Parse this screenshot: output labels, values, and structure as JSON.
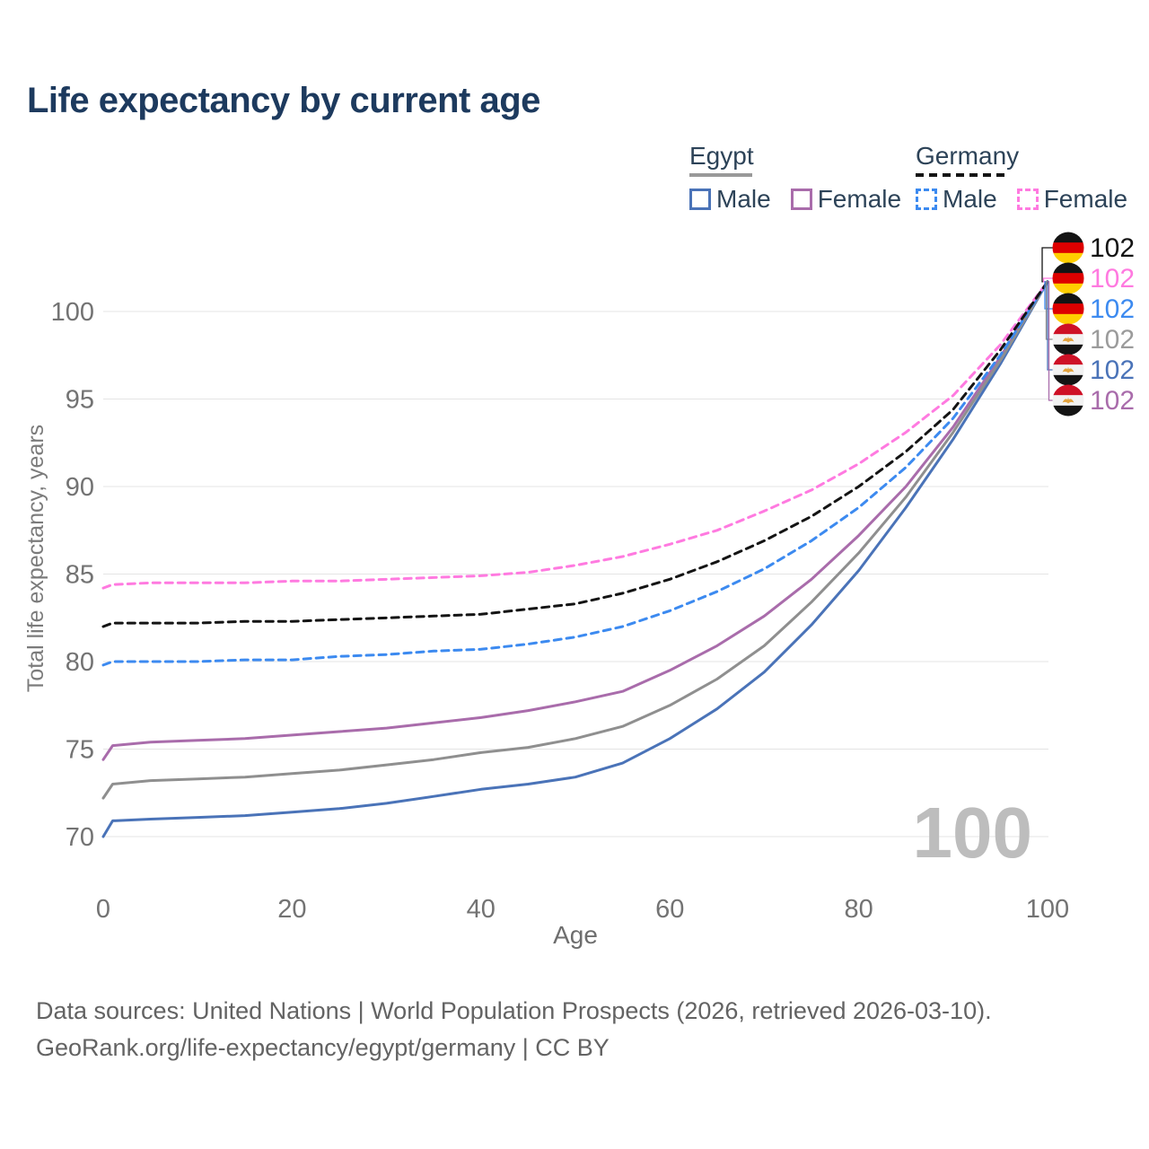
{
  "header": {
    "title": "Life expectancy by current age"
  },
  "legend": {
    "groups": [
      {
        "country": "Egypt",
        "underline_style": "solid",
        "underline_color": "#999999",
        "items": [
          {
            "label": "Male",
            "color": "#4a73b8",
            "dashed": false
          },
          {
            "label": "Female",
            "color": "#a96cab",
            "dashed": false
          }
        ]
      },
      {
        "country": "Germany",
        "underline_style": "dashed",
        "underline_color": "#141414",
        "items": [
          {
            "label": "Male",
            "color": "#3c8af0",
            "dashed": true
          },
          {
            "label": "Female",
            "color": "#ff7ae0",
            "dashed": true
          }
        ]
      }
    ]
  },
  "chart_data": {
    "type": "line",
    "title": "Life expectancy by current age",
    "xlabel": "Age",
    "ylabel": "Total life expectancy, years",
    "xlim": [
      0,
      100
    ],
    "ylim": [
      70,
      102
    ],
    "x_ticks": [
      0,
      20,
      40,
      60,
      80,
      100
    ],
    "y_ticks": [
      70,
      75,
      80,
      85,
      90,
      95,
      100
    ],
    "grid": true,
    "legend_position": "top-right",
    "age_counter_watermark": "100",
    "grid_color": "#e4e4e4",
    "axis_text_color": "#737373",
    "watermark_color": "#bdbdbd",
    "x": [
      0,
      1,
      5,
      10,
      15,
      20,
      25,
      30,
      35,
      40,
      45,
      50,
      55,
      60,
      65,
      70,
      75,
      80,
      85,
      90,
      95,
      100
    ],
    "series": [
      {
        "id": "germany-total",
        "country": "Germany",
        "sex": "Both sexes",
        "flag": "de",
        "color": "#141414",
        "label_color": "#141414",
        "dashed": true,
        "end_label": "102",
        "values": [
          82.0,
          82.2,
          82.2,
          82.2,
          82.3,
          82.3,
          82.4,
          82.5,
          82.6,
          82.7,
          83.0,
          83.3,
          83.9,
          84.7,
          85.7,
          86.9,
          88.3,
          90.0,
          92.0,
          94.4,
          97.8,
          101.7
        ]
      },
      {
        "id": "germany-female",
        "country": "Germany",
        "sex": "Female",
        "flag": "de",
        "color": "#ff7ae0",
        "label_color": "#ff7ae0",
        "dashed": true,
        "end_label": "102",
        "values": [
          84.2,
          84.4,
          84.5,
          84.5,
          84.5,
          84.6,
          84.6,
          84.7,
          84.8,
          84.9,
          85.1,
          85.5,
          86.0,
          86.7,
          87.5,
          88.6,
          89.8,
          91.3,
          93.1,
          95.2,
          98.1,
          101.7
        ]
      },
      {
        "id": "germany-male",
        "country": "Germany",
        "sex": "Male",
        "flag": "de",
        "color": "#3c8af0",
        "label_color": "#3c8af0",
        "dashed": true,
        "end_label": "102",
        "values": [
          79.8,
          80.0,
          80.0,
          80.0,
          80.1,
          80.1,
          80.3,
          80.4,
          80.6,
          80.7,
          81.0,
          81.4,
          82.0,
          82.9,
          84.0,
          85.3,
          86.9,
          88.8,
          91.1,
          93.9,
          97.5,
          101.7
        ]
      },
      {
        "id": "egypt-total",
        "country": "Egypt",
        "sex": "Both sexes",
        "flag": "eg",
        "color": "#8f8f8f",
        "label_color": "#9b9b9b",
        "dashed": false,
        "end_label": "102",
        "values": [
          72.2,
          73.0,
          73.2,
          73.3,
          73.4,
          73.6,
          73.8,
          74.1,
          74.4,
          74.8,
          75.1,
          75.6,
          76.3,
          77.5,
          79.0,
          80.9,
          83.4,
          86.2,
          89.4,
          93.1,
          97.2,
          101.7
        ]
      },
      {
        "id": "egypt-male",
        "country": "Egypt",
        "sex": "Male",
        "flag": "eg",
        "color": "#4a73b8",
        "label_color": "#4a73b8",
        "dashed": false,
        "end_label": "102",
        "values": [
          70.0,
          70.9,
          71.0,
          71.1,
          71.2,
          71.4,
          71.6,
          71.9,
          72.3,
          72.7,
          73.0,
          73.4,
          74.2,
          75.6,
          77.3,
          79.4,
          82.1,
          85.2,
          88.8,
          92.7,
          97.0,
          101.7
        ]
      },
      {
        "id": "egypt-female",
        "country": "Egypt",
        "sex": "Female",
        "flag": "eg",
        "color": "#a96cab",
        "label_color": "#a96cab",
        "dashed": false,
        "end_label": "102",
        "values": [
          74.4,
          75.2,
          75.4,
          75.5,
          75.6,
          75.8,
          76.0,
          76.2,
          76.5,
          76.8,
          77.2,
          77.7,
          78.3,
          79.5,
          80.9,
          82.6,
          84.7,
          87.2,
          90.0,
          93.4,
          97.4,
          101.7
        ]
      }
    ],
    "flag_colors": {
      "de": [
        "#141414",
        "#dd0000",
        "#ffce00"
      ],
      "eg": [
        "#ce1126",
        "#f2f2f2",
        "#141414"
      ],
      "eg_emblem": "#e3a33e"
    }
  },
  "footer": {
    "line1": "Data sources: United Nations | World Population Prospects (2026, retrieved 2026-03-10).",
    "line2": "GeoRank.org/life-expectancy/egypt/germany | CC BY"
  }
}
